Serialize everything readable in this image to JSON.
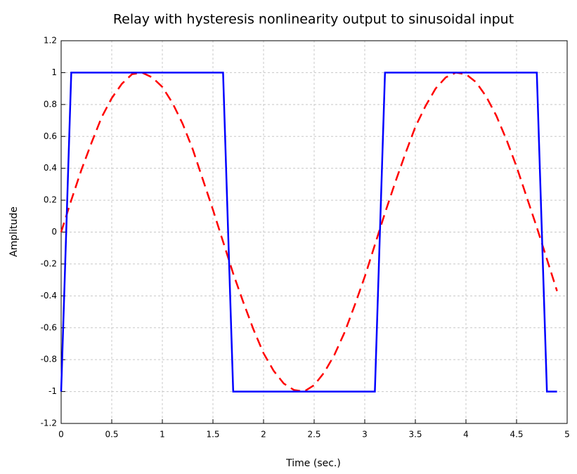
{
  "chart_data": {
    "type": "line",
    "title": "Relay with hysteresis nonlinearity output to sinusoidal input",
    "x_label": "Time (sec.)",
    "y_label": "Amplitude",
    "x": [
      0,
      0.1,
      0.2,
      0.3,
      0.4,
      0.5,
      0.6,
      0.7,
      0.8,
      0.9,
      1,
      1.1,
      1.2,
      1.3,
      1.4,
      1.5,
      1.6,
      1.7,
      1.8,
      1.9,
      2,
      2.1,
      2.2,
      2.3,
      2.4,
      2.5,
      2.6,
      2.7,
      2.8,
      2.9,
      3,
      3.1,
      3.2,
      3.3,
      3.4,
      3.5,
      3.6,
      3.7,
      3.8,
      3.9,
      4,
      4.1,
      4.2,
      4.3,
      4.4,
      4.5,
      4.6,
      4.7,
      4.8,
      4.9
    ],
    "series": [
      {
        "color": "#ff0000",
        "dashed": true,
        "values": [
          0,
          0.2,
          0.39,
          0.56,
          0.72,
          0.84,
          0.93,
          0.99,
          1,
          0.97,
          0.91,
          0.81,
          0.68,
          0.52,
          0.33,
          0.14,
          -0.06,
          -0.26,
          -0.44,
          -0.61,
          -0.76,
          -0.87,
          -0.95,
          -0.99,
          -1,
          -0.96,
          -0.88,
          -0.77,
          -0.63,
          -0.46,
          -0.28,
          -0.08,
          0.12,
          0.31,
          0.49,
          0.66,
          0.79,
          0.9,
          0.97,
          1,
          0.99,
          0.94,
          0.85,
          0.73,
          0.58,
          0.41,
          0.22,
          0.03,
          -0.17,
          -0.37
        ]
      },
      {
        "color": "#0000ff",
        "dashed": false,
        "values": [
          -1,
          1,
          1,
          1,
          1,
          1,
          1,
          1,
          1,
          1,
          1,
          1,
          1,
          1,
          1,
          1,
          1,
          -1,
          -1,
          -1,
          -1,
          -1,
          -1,
          -1,
          -1,
          -1,
          -1,
          -1,
          -1,
          -1,
          -1,
          -1,
          1,
          1,
          1,
          1,
          1,
          1,
          1,
          1,
          1,
          1,
          1,
          1,
          1,
          1,
          1,
          1,
          -1,
          -1
        ]
      }
    ],
    "xlim": [
      0,
      5
    ],
    "xticks": [
      0,
      0.5,
      1,
      1.5,
      2,
      2.5,
      3,
      3.5,
      4,
      4.5,
      5
    ],
    "ylim": [
      -1.2,
      1.2
    ],
    "yticks": [
      -1.2,
      -1,
      -0.8,
      -0.6,
      -0.4,
      -0.2,
      0,
      0.2,
      0.4,
      0.6,
      0.8,
      1,
      1.2
    ],
    "grid": true
  }
}
